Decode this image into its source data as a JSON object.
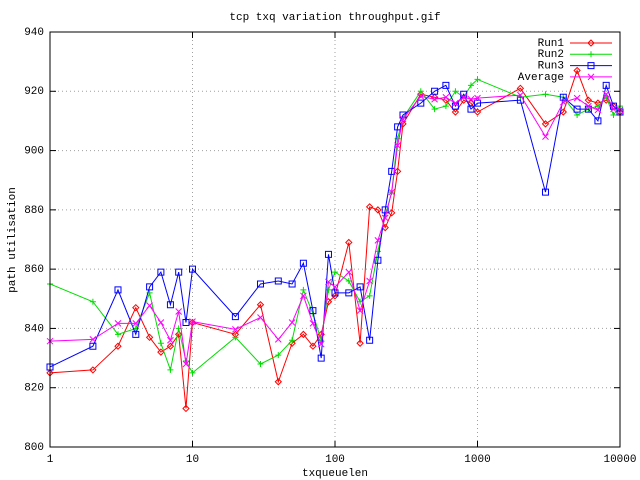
{
  "chart_data": {
    "type": "line",
    "title": "tcp txq variation throughput.gif",
    "x_label": "txqueuelen",
    "y_label": "path utilisation",
    "xscale": "log",
    "grid": true,
    "legend": "top-right",
    "xlim": [
      1,
      10000
    ],
    "xticks": [
      1,
      10,
      100,
      1000,
      10000
    ],
    "ylim": [
      800,
      940
    ],
    "yticks": [
      800,
      820,
      840,
      860,
      880,
      900,
      920,
      940
    ],
    "x": [
      1,
      2,
      3,
      4,
      5,
      6,
      7,
      8,
      9,
      10,
      20,
      30,
      40,
      50,
      60,
      70,
      80,
      90,
      100,
      125,
      150,
      175,
      200,
      225,
      250,
      275,
      300,
      400,
      500,
      600,
      700,
      800,
      900,
      1000,
      2000,
      3000,
      4000,
      5000,
      6000,
      7000,
      8000,
      9000,
      10000
    ],
    "series": [
      {
        "name": "Run1",
        "color": "#ff0000",
        "marker": "diamond",
        "values": [
          825,
          826,
          834,
          847,
          837,
          832,
          834,
          838,
          813,
          842,
          838,
          848,
          822,
          835,
          838,
          834,
          838,
          849,
          851,
          869,
          835,
          881,
          880,
          874,
          879,
          893,
          909,
          919,
          918,
          917,
          913,
          917,
          916,
          913,
          921,
          909,
          913,
          927,
          917,
          916,
          917,
          915,
          913
        ]
      },
      {
        "name": "Run2",
        "color": "#00dd00",
        "marker": "plus",
        "values": [
          855,
          849,
          838,
          840,
          852,
          835,
          826,
          840,
          829,
          825,
          837,
          828,
          831,
          836,
          853,
          845,
          836,
          853,
          859,
          856,
          849,
          851,
          866,
          878,
          886,
          904,
          911,
          920,
          914,
          915,
          920,
          918,
          922,
          924,
          918,
          919,
          918,
          912,
          914,
          915,
          918,
          912,
          915
        ]
      },
      {
        "name": "Run3",
        "color": "#0000ff",
        "marker": "square",
        "values": [
          827,
          834,
          853,
          838,
          854,
          859,
          848,
          859,
          842,
          860,
          844,
          855,
          856,
          855,
          862,
          846,
          830,
          865,
          852,
          852,
          854,
          836,
          863,
          880,
          893,
          908,
          912,
          916,
          920,
          922,
          915,
          919,
          914,
          916,
          917,
          886,
          918,
          914,
          914,
          910,
          922,
          915,
          913
        ]
      },
      {
        "name": "Average",
        "color": "#ff00ff",
        "marker": "cross",
        "values": [
          835.7,
          836.3,
          841.7,
          841.7,
          847.7,
          842,
          836,
          845.7,
          828,
          842.3,
          839.7,
          843.7,
          836.3,
          842,
          851,
          841.7,
          834.7,
          855.7,
          854,
          859,
          846,
          856,
          869.7,
          877.3,
          886,
          901.7,
          910.7,
          918.3,
          917.3,
          918,
          916,
          918,
          917.3,
          917.7,
          918.7,
          904.7,
          916.3,
          917.7,
          915,
          913.7,
          919,
          914,
          913.7
        ]
      }
    ]
  }
}
